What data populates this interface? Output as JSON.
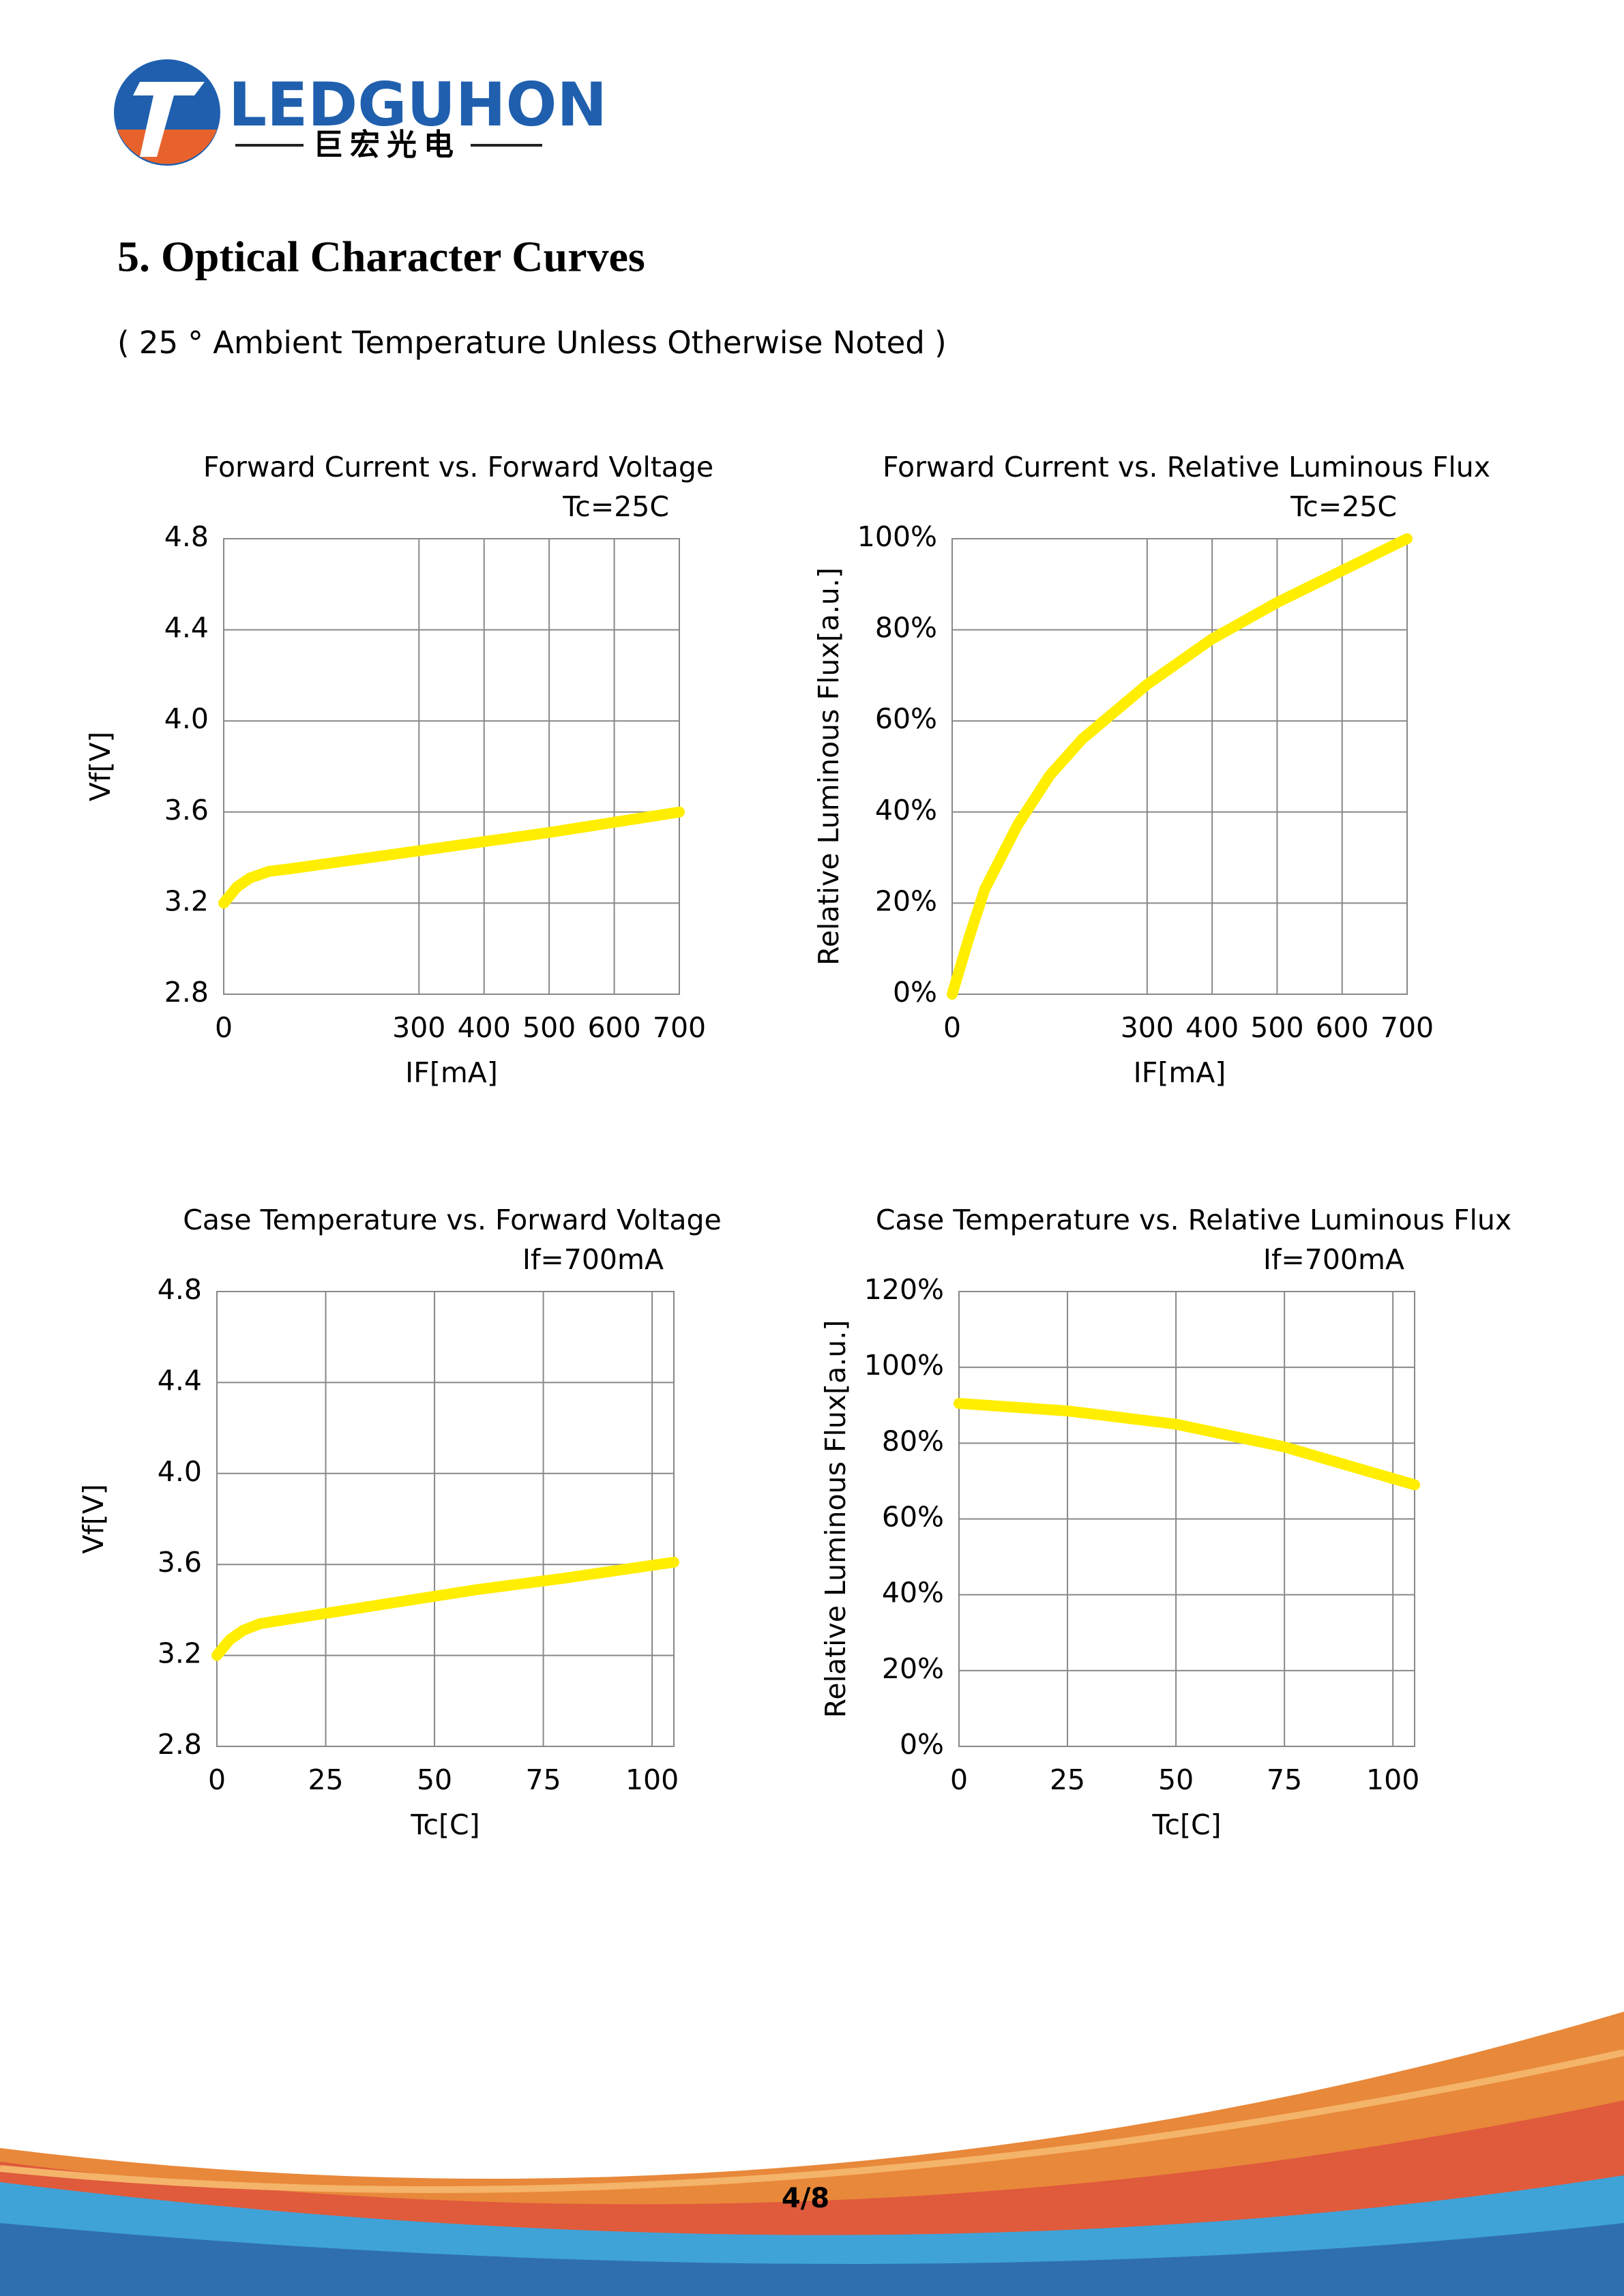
{
  "logo": {
    "name": "LEDGUHON",
    "subname": "巨宏光电"
  },
  "heading": "5. Optical Character Curves",
  "subheading": "( 25 ° Ambient Temperature Unless Otherwise Noted )",
  "page_number": "4/8",
  "chart_data": [
    {
      "type": "line",
      "title": "Forward Current vs. Forward Voltage",
      "note": "Tc=25C",
      "x_label": "IF[mA]",
      "y_label": "Vf[V]",
      "x": [
        0,
        20,
        40,
        70,
        100,
        200,
        300,
        400,
        500,
        600,
        700
      ],
      "values": [
        3.2,
        3.27,
        3.31,
        3.34,
        3.35,
        3.39,
        3.43,
        3.47,
        3.51,
        3.555,
        3.6
      ],
      "color": "#ffee00",
      "xlim": [
        0,
        700
      ],
      "xticks": [
        0,
        300,
        400,
        500,
        600,
        700
      ],
      "ylim": [
        2.8,
        4.8
      ],
      "yticks": [
        2.8,
        3.2,
        3.6,
        {
          "value": 4,
          "label": "4.0"
        },
        4.4,
        4.8
      ],
      "grid": true
    },
    {
      "type": "line",
      "title": "Forward Current vs. Relative Luminous Flux",
      "note": "Tc=25C",
      "x_label": "IF[mA]",
      "y_label": "Relative Luminous Flux[a.u.]",
      "x": [
        0,
        25,
        50,
        100,
        150,
        200,
        300,
        400,
        500,
        600,
        700
      ],
      "values": [
        0,
        12,
        23,
        37,
        48,
        56,
        68,
        78,
        86,
        93,
        100
      ],
      "color": "#ffee00",
      "xlim": [
        0,
        700
      ],
      "xticks": [
        0,
        300,
        400,
        500,
        600,
        700
      ],
      "ylim": [
        0,
        100
      ],
      "yticks": [
        {
          "value": 0,
          "label": "0%"
        },
        {
          "value": 20,
          "label": "20%"
        },
        {
          "value": 40,
          "label": "40%"
        },
        {
          "value": 60,
          "label": "60%"
        },
        {
          "value": 80,
          "label": "80%"
        },
        {
          "value": 100,
          "label": "100%"
        }
      ],
      "grid": true
    },
    {
      "type": "line",
      "title": "Case Temperature vs. Forward Voltage",
      "note": "If=700mA",
      "x_label": "Tc[C]",
      "y_label": "Vf[V]",
      "x": [
        0,
        3,
        6,
        10,
        20,
        40,
        60,
        80,
        105
      ],
      "values": [
        3.2,
        3.27,
        3.31,
        3.34,
        3.37,
        3.43,
        3.49,
        3.54,
        3.61
      ],
      "color": "#ffee00",
      "xlim": [
        0,
        105
      ],
      "xticks": [
        0,
        25,
        50,
        75,
        100
      ],
      "ylim": [
        2.8,
        4.8
      ],
      "yticks": [
        2.8,
        3.2,
        3.6,
        {
          "value": 4,
          "label": "4.0"
        },
        4.4,
        4.8
      ],
      "grid": true
    },
    {
      "type": "line",
      "title": "Case Temperature vs. Relative Luminous Flux",
      "note": "If=700mA",
      "x_label": "Tc[C]",
      "y_label": "Relative Luminous Flux[a.u.]",
      "x": [
        0,
        25,
        50,
        75,
        105
      ],
      "values": [
        90.5,
        88.5,
        85,
        79,
        69
      ],
      "color": "#ffee00",
      "xlim": [
        0,
        105
      ],
      "xticks": [
        0,
        25,
        50,
        75,
        100
      ],
      "ylim": [
        0,
        120
      ],
      "yticks": [
        {
          "value": 0,
          "label": "0%"
        },
        {
          "value": 20,
          "label": "20%"
        },
        {
          "value": 40,
          "label": "40%"
        },
        {
          "value": 60,
          "label": "60%"
        },
        {
          "value": 80,
          "label": "80%"
        },
        {
          "value": 100,
          "label": "100%"
        },
        {
          "value": 120,
          "label": "120%"
        }
      ],
      "grid": true
    }
  ]
}
